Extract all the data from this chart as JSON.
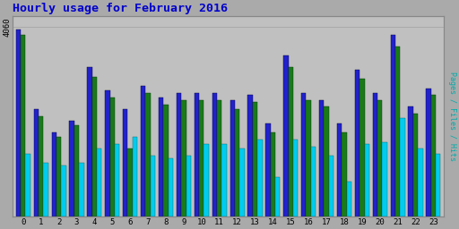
{
  "title": "Hourly usage for February 2016",
  "ylabel": "Pages / Files / Hits",
  "hours": [
    0,
    1,
    2,
    3,
    4,
    5,
    6,
    7,
    8,
    9,
    10,
    11,
    12,
    13,
    14,
    15,
    16,
    17,
    18,
    19,
    20,
    21,
    22,
    23
  ],
  "files": [
    4000,
    2300,
    1800,
    2050,
    3200,
    2700,
    2300,
    2800,
    2550,
    2650,
    2650,
    2650,
    2500,
    2600,
    2000,
    3450,
    2650,
    2500,
    2000,
    3150,
    2650,
    3900,
    2350,
    2750
  ],
  "pages": [
    3900,
    2150,
    1700,
    1950,
    3000,
    2550,
    1450,
    2650,
    2400,
    2500,
    2500,
    2500,
    2300,
    2450,
    1800,
    3200,
    2500,
    2350,
    1800,
    2950,
    2500,
    3650,
    2200,
    2600
  ],
  "hits": [
    1350,
    1150,
    1100,
    1150,
    1450,
    1550,
    1700,
    1300,
    1250,
    1300,
    1550,
    1550,
    1450,
    1650,
    850,
    1650,
    1500,
    1300,
    750,
    1550,
    1600,
    2100,
    1450,
    1350
  ],
  "color_files": "#2222cc",
  "color_pages": "#1a7a1a",
  "color_hits": "#00ccee",
  "bg_color": "#aaaaaa",
  "plot_bg": "#c0c0c0",
  "title_color": "#0000cc",
  "ylabel_color": "#00aaaa",
  "ylim": [
    0,
    4300
  ],
  "ytick_val": 4060,
  "bar_width": 0.27
}
